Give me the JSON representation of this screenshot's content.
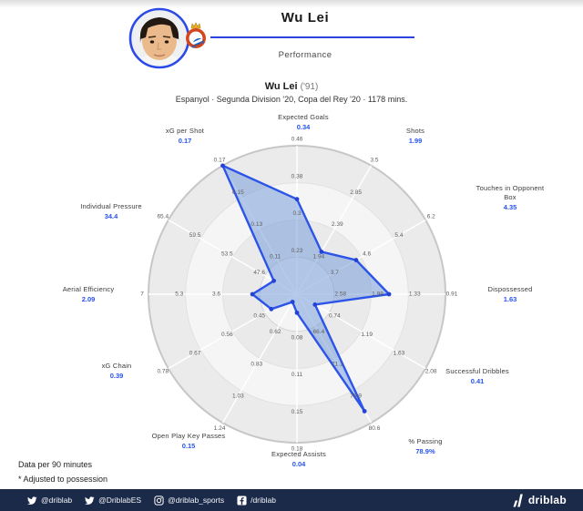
{
  "header": {
    "title": "Wu Lei",
    "subtitle": "Performance"
  },
  "chart_header": {
    "title": "Wu Lei",
    "title_note": "('91)",
    "subtitle": "Espanyol · Segunda Division '20, Copa del Rey '20 · 1178 mins."
  },
  "notes": {
    "line1": "Data per 90 minutes",
    "line2": "* Adjusted to possession"
  },
  "footer": {
    "handles": [
      {
        "icon": "twitter-icon",
        "label": "@driblab"
      },
      {
        "icon": "twitter-icon",
        "label": "@DriblabES"
      },
      {
        "icon": "instagram-icon",
        "label": "@driblab_sports"
      },
      {
        "icon": "facebook-icon",
        "label": "/driblab"
      }
    ],
    "brand": "driblab"
  },
  "colors": {
    "accent_blue": "#2553ef",
    "polygon_stroke": "#2c54e8",
    "polygon_fill": "#6d97d8",
    "footer_bg": "#1c2a4a",
    "ring_dark": "#ebebeb",
    "ring_light": "#f5f5f5"
  },
  "chart_data": {
    "type": "radar",
    "title": "Wu Lei ('91)",
    "subtitle": "Espanyol · Segunda Division '20, Copa del Rey '20 · 1178 mins.",
    "rings": 4,
    "note": "ticks listed outer ring to inner ring; r is plotted radius fraction of outer ring",
    "axes": [
      {
        "label": "Expected Goals",
        "value": "0.34",
        "ticks": [
          "0.46",
          "0.38",
          "0.3",
          "0.23"
        ],
        "r": 0.64
      },
      {
        "label": "Shots",
        "value": "1.99",
        "ticks": [
          "3.5",
          "2.85",
          "2.39",
          "1.94"
        ],
        "r": 0.33
      },
      {
        "label": "Touches in Opponent Box",
        "lines": [
          "Touches in Opponent",
          "Box"
        ],
        "value": "4.35",
        "ticks": [
          "6.2",
          "5.4",
          "4.6",
          "3.7"
        ],
        "r": 0.46
      },
      {
        "label": "Dispossessed",
        "value": "1.63",
        "ticks": [
          "0.91",
          "1.33",
          "1.98",
          "2.58"
        ],
        "r": 0.62,
        "inverted": true
      },
      {
        "label": "Successful Dribbles",
        "value": "0.41",
        "ticks": [
          "2.08",
          "1.63",
          "1.19",
          "0.74"
        ],
        "r": 0.14
      },
      {
        "label": "% Passing",
        "value": "78.9%",
        "ticks": [
          "80.6",
          "75.9",
          "71.1",
          "66.4"
        ],
        "r": 0.91
      },
      {
        "label": "Expected Assists",
        "value": "0.04",
        "ticks": [
          "0.18",
          "0.15",
          "0.11",
          "0.08"
        ],
        "r": 0.125
      },
      {
        "label": "Open Play Key Passes",
        "value": "0.15",
        "ticks": [
          "1.24",
          "1.03",
          "0.83",
          "0.62"
        ],
        "r": 0.06
      },
      {
        "label": "xG Chain",
        "value": "0.39",
        "ticks": [
          "0.78",
          "0.67",
          "0.56",
          "0.45"
        ],
        "r": 0.2
      },
      {
        "label": "Aerial Efficiency",
        "value": "2.09",
        "ticks": [
          "7",
          "5.3",
          "3.6",
          ""
        ],
        "r": 0.3
      },
      {
        "label": "Individual Pressure",
        "value": "34.4",
        "ticks": [
          "65.4",
          "59.5",
          "53.5",
          "47.6"
        ],
        "r": 0.18
      },
      {
        "label": "xG per Shot",
        "value": "0.17",
        "ticks": [
          "0.17",
          "0.15",
          "0.13",
          "0.11"
        ],
        "r": 1.0
      }
    ]
  }
}
